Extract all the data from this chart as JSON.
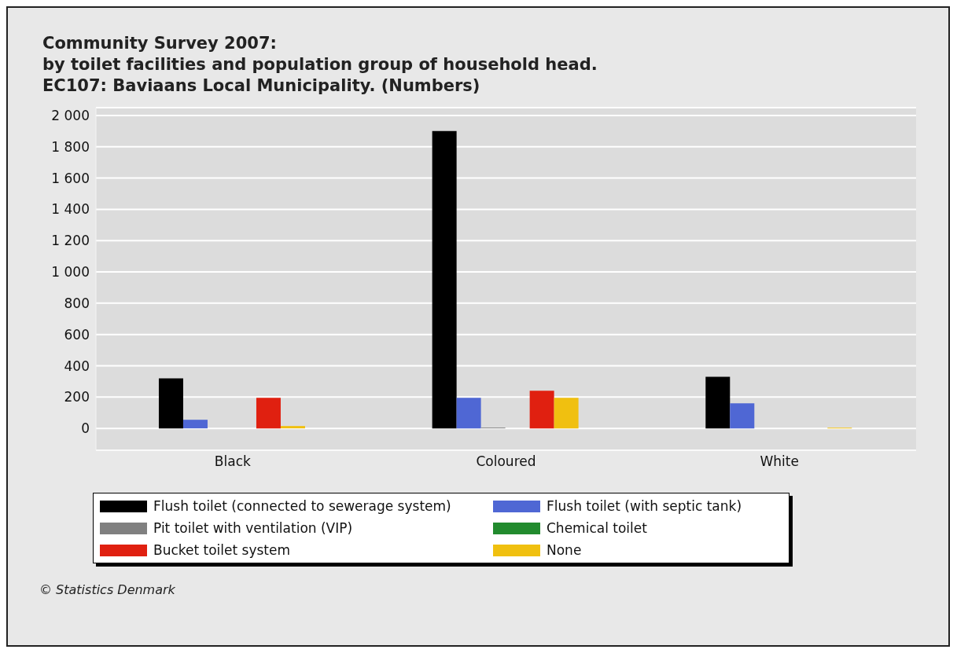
{
  "chart_data": {
    "type": "bar",
    "title": "Community Survey 2007:\nby toilet facilities and population group of household head.\nEC107: Baviaans Local Municipality. (Numbers)",
    "categories": [
      "Black",
      "Coloured",
      "White"
    ],
    "series": [
      {
        "name": "Flush toilet (connected to sewerage system)",
        "color": "#000000",
        "values": [
          320,
          1900,
          330
        ]
      },
      {
        "name": "Flush toilet (with septic tank)",
        "color": "#4f67d4",
        "values": [
          55,
          195,
          160
        ]
      },
      {
        "name": "Pit toilet with ventilation (VIP)",
        "color": "#808080",
        "values": [
          0,
          5,
          0
        ]
      },
      {
        "name": "Chemical toilet",
        "color": "#228b2e",
        "values": [
          0,
          0,
          0
        ]
      },
      {
        "name": "Bucket toilet system",
        "color": "#e02010",
        "values": [
          195,
          240,
          0
        ]
      },
      {
        "name": "None",
        "color": "#f0c010",
        "values": [
          15,
          195,
          5
        ]
      }
    ],
    "ylim": [
      -140,
      2050
    ],
    "yticks": [
      0,
      200,
      400,
      600,
      800,
      {
        "value": 1000,
        "label": "1 000"
      },
      {
        "value": 1200,
        "label": "1 200"
      },
      {
        "value": 1400,
        "label": "1 400"
      },
      {
        "value": 1600,
        "label": "1 600"
      },
      {
        "value": 1800,
        "label": "1 800"
      },
      {
        "value": 2000,
        "label": "2 000"
      }
    ],
    "grid": "y",
    "legend": "bottom",
    "annotations": [
      "© Statistics Denmark"
    ]
  }
}
